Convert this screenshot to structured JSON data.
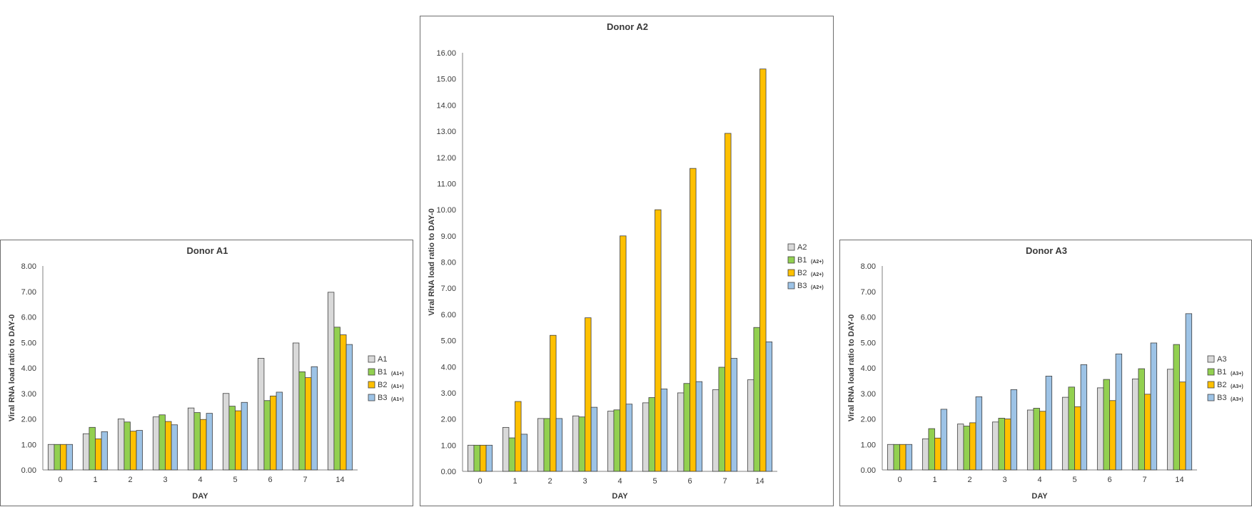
{
  "chart_data": [
    {
      "type": "bar",
      "title": "Donor A1",
      "xlabel": "DAY",
      "ylabel": "Viral RNA load ratio to DAY-0",
      "ylim": [
        0,
        8
      ],
      "yticks": [
        "0.00",
        "1.00",
        "2.00",
        "3.00",
        "4.00",
        "5.00",
        "6.00",
        "7.00",
        "8.00"
      ],
      "categories": [
        "0",
        "1",
        "2",
        "3",
        "4",
        "5",
        "6",
        "7",
        "14"
      ],
      "legend_position": "right",
      "grid": false,
      "series": [
        {
          "name": "A1",
          "sub": "",
          "color": "#d9d9d9",
          "values": [
            1.0,
            1.42,
            2.0,
            2.08,
            2.43,
            3.0,
            4.38,
            4.98,
            6.97
          ]
        },
        {
          "name": "B1",
          "sub": "(A1+)",
          "color": "#92d050",
          "values": [
            1.0,
            1.67,
            1.88,
            2.16,
            2.25,
            2.5,
            2.72,
            3.85,
            5.6
          ]
        },
        {
          "name": "B2",
          "sub": "(A1+)",
          "color": "#ffc000",
          "values": [
            1.0,
            1.22,
            1.52,
            1.9,
            1.98,
            2.32,
            2.9,
            3.62,
            5.3
          ]
        },
        {
          "name": "B3",
          "sub": "(A1+)",
          "color": "#9dc3e6",
          "values": [
            1.0,
            1.5,
            1.55,
            1.77,
            2.22,
            2.65,
            3.05,
            4.05,
            4.92
          ]
        }
      ]
    },
    {
      "type": "bar",
      "title": "Donor A2",
      "xlabel": "DAY",
      "ylabel": "Viral RNA load ratio to DAY-0",
      "ylim": [
        0,
        16
      ],
      "yticks": [
        "0.00",
        "1.00",
        "2.00",
        "3.00",
        "4.00",
        "5.00",
        "6.00",
        "7.00",
        "8.00",
        "9.00",
        "10.00",
        "11.00",
        "12.00",
        "13.00",
        "14.00",
        "15.00",
        "16.00"
      ],
      "categories": [
        "0",
        "1",
        "2",
        "3",
        "4",
        "5",
        "6",
        "7",
        "14"
      ],
      "legend_position": "right",
      "grid": false,
      "series": [
        {
          "name": "A2",
          "sub": "",
          "color": "#d9d9d9",
          "values": [
            1.0,
            1.68,
            2.02,
            2.12,
            2.3,
            2.62,
            3.0,
            3.12,
            3.5
          ]
        },
        {
          "name": "B1",
          "sub": "(A2+)",
          "color": "#92d050",
          "values": [
            1.0,
            1.28,
            2.02,
            2.08,
            2.35,
            2.82,
            3.36,
            3.98,
            5.5
          ]
        },
        {
          "name": "B2",
          "sub": "(A2+)",
          "color": "#ffc000",
          "values": [
            1.0,
            2.67,
            5.2,
            5.87,
            9.0,
            10.0,
            11.58,
            12.92,
            15.38
          ]
        },
        {
          "name": "B3",
          "sub": "(A2+)",
          "color": "#9dc3e6",
          "values": [
            1.0,
            1.42,
            2.02,
            2.45,
            2.57,
            3.15,
            3.43,
            4.32,
            4.95
          ]
        }
      ]
    },
    {
      "type": "bar",
      "title": "Donor A3",
      "xlabel": "DAY",
      "ylabel": "Viral RNA load ratio to DAY-0",
      "ylim": [
        0,
        8
      ],
      "yticks": [
        "0.00",
        "1.00",
        "2.00",
        "3.00",
        "4.00",
        "5.00",
        "6.00",
        "7.00",
        "8.00"
      ],
      "categories": [
        "0",
        "1",
        "2",
        "3",
        "4",
        "5",
        "6",
        "7",
        "14"
      ],
      "legend_position": "right",
      "grid": false,
      "series": [
        {
          "name": "A3",
          "sub": "",
          "color": "#d9d9d9",
          "values": [
            1.0,
            1.22,
            1.8,
            1.88,
            2.35,
            2.85,
            3.22,
            3.57,
            3.95
          ]
        },
        {
          "name": "B1",
          "sub": "(A3+)",
          "color": "#92d050",
          "values": [
            1.0,
            1.62,
            1.72,
            2.03,
            2.42,
            3.25,
            3.55,
            3.97,
            4.92
          ]
        },
        {
          "name": "B2",
          "sub": "(A3+)",
          "color": "#ffc000",
          "values": [
            1.0,
            1.25,
            1.85,
            2.0,
            2.3,
            2.48,
            2.72,
            2.97,
            3.45
          ]
        },
        {
          "name": "B3",
          "sub": "(A3+)",
          "color": "#9dc3e6",
          "values": [
            1.0,
            2.38,
            2.87,
            3.15,
            3.68,
            4.13,
            4.55,
            4.98,
            6.13
          ]
        }
      ]
    }
  ]
}
